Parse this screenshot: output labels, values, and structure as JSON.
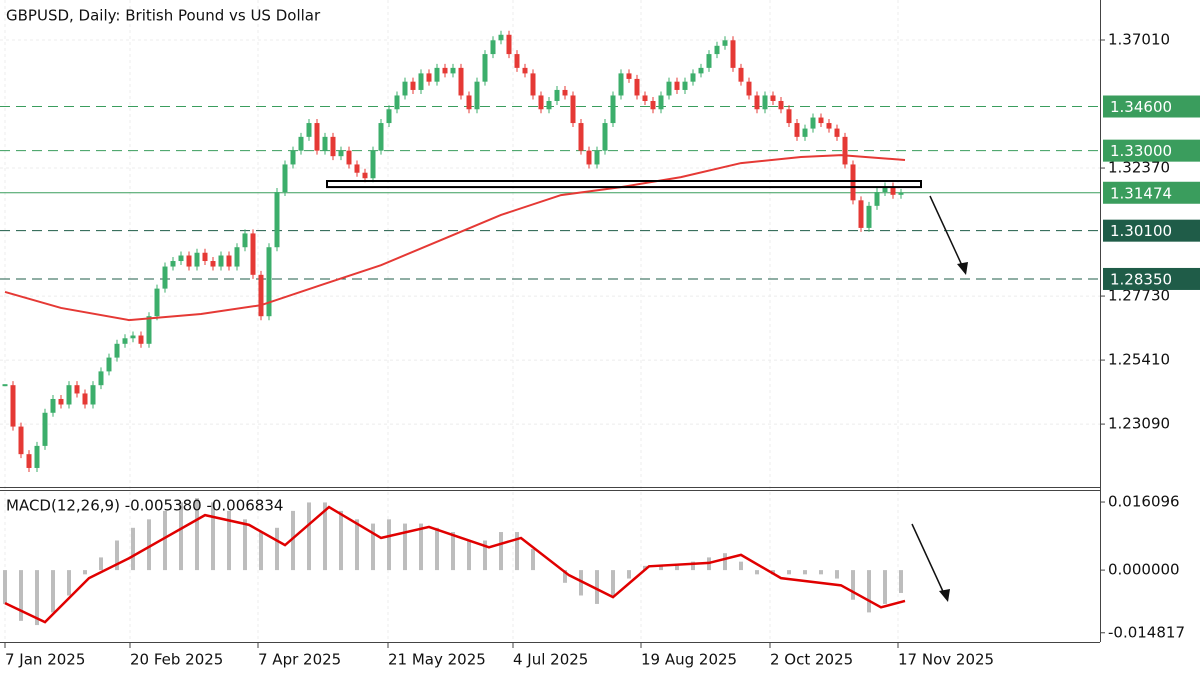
{
  "chart_data": [
    {
      "type": "candlestick",
      "title": "GBPUSD, Daily:  British Pound vs US Dollar",
      "xlim": [
        -1.25,
        273.75
      ],
      "xticks": [
        {
          "value": 0,
          "label": "7 Jan 2025"
        },
        {
          "value": 31.25,
          "label": "20 Feb 2025"
        },
        {
          "value": 63.25,
          "label": "7 Apr 2025"
        },
        {
          "value": 95.75,
          "label": "21 May 2025"
        },
        {
          "value": 127,
          "label": "4 Jul 2025"
        },
        {
          "value": 159,
          "label": "19 Aug 2025"
        },
        {
          "value": 191.25,
          "label": "2 Oct 2025"
        },
        {
          "value": 223.25,
          "label": "17 Nov 2025"
        }
      ],
      "ylim": [
        1.2081,
        1.3846
      ],
      "yticks": [
        {
          "value": 1.3701,
          "label": "1.37010"
        },
        {
          "value": 1.3237,
          "label": "1.32370"
        },
        {
          "value": 1.2773,
          "label": "1.27730"
        },
        {
          "value": 1.2541,
          "label": "1.25410"
        },
        {
          "value": 1.2309,
          "label": "1.23090"
        }
      ],
      "up_color": "#3cae6b",
      "down_color": "#e53935",
      "x": [
        0,
        2,
        4,
        6,
        8,
        10,
        12,
        14,
        16,
        18,
        20,
        22,
        24,
        26,
        28,
        30,
        32,
        34,
        36,
        38,
        40,
        42,
        44,
        46,
        48,
        50,
        52,
        54,
        56,
        58,
        60,
        62,
        64,
        66,
        68,
        70,
        72,
        74,
        76,
        78,
        80,
        82,
        84,
        86,
        88,
        90,
        92,
        94,
        96,
        98,
        100,
        102,
        104,
        106,
        108,
        110,
        112,
        114,
        116,
        118,
        120,
        122,
        124,
        126,
        128,
        130,
        132,
        134,
        136,
        138,
        140,
        142,
        144,
        146,
        148,
        150,
        152,
        154,
        156,
        158,
        160,
        162,
        164,
        166,
        168,
        170,
        172,
        174,
        176,
        178,
        180,
        182,
        184,
        186,
        188,
        190,
        192,
        194,
        196,
        198,
        200,
        202,
        204,
        206,
        208,
        210,
        212,
        214,
        216,
        218,
        220,
        222,
        224
      ],
      "values": [
        1.245,
        1.23,
        1.22,
        1.215,
        1.223,
        1.235,
        1.24,
        1.238,
        1.245,
        1.242,
        1.238,
        1.245,
        1.25,
        1.255,
        1.26,
        1.262,
        1.263,
        1.26,
        1.27,
        1.28,
        1.288,
        1.29,
        1.292,
        1.288,
        1.293,
        1.29,
        1.288,
        1.292,
        1.288,
        1.295,
        1.3,
        1.285,
        1.27,
        1.295,
        1.315,
        1.325,
        1.33,
        1.335,
        1.34,
        1.33,
        1.335,
        1.328,
        1.33,
        1.325,
        1.322,
        1.32,
        1.33,
        1.34,
        1.345,
        1.35,
        1.355,
        1.352,
        1.358,
        1.355,
        1.36,
        1.358,
        1.36,
        1.35,
        1.345,
        1.355,
        1.365,
        1.37,
        1.372,
        1.365,
        1.36,
        1.358,
        1.35,
        1.345,
        1.348,
        1.352,
        1.35,
        1.34,
        1.33,
        1.325,
        1.33,
        1.34,
        1.35,
        1.358,
        1.356,
        1.35,
        1.348,
        1.345,
        1.35,
        1.355,
        1.352,
        1.355,
        1.358,
        1.36,
        1.365,
        1.368,
        1.37,
        1.36,
        1.355,
        1.35,
        1.345,
        1.35,
        1.348,
        1.345,
        1.34,
        1.335,
        1.338,
        1.342,
        1.34,
        1.338,
        1.335,
        1.325,
        1.312,
        1.302,
        1.31,
        1.315,
        1.317,
        1.314,
        1.3147
      ],
      "ma": {
        "color": "#e53935",
        "x": [
          0,
          14,
          31,
          49,
          64,
          79,
          94,
          109,
          124,
          139,
          154,
          169,
          184,
          199,
          209,
          225
        ],
        "values": [
          1.2788,
          1.273,
          1.2686,
          1.2708,
          1.274,
          1.2813,
          1.2885,
          1.2976,
          1.3067,
          1.3139,
          1.3168,
          1.3204,
          1.3255,
          1.3277,
          1.3284,
          1.3266
        ]
      },
      "zone": {
        "x": [
          80.5,
          229
        ],
        "y": [
          1.3168,
          1.319
        ]
      },
      "levels": [
        {
          "value": 1.346,
          "label": "1.34600",
          "color": "#3a9d5d"
        },
        {
          "value": 1.33,
          "label": "1.33000",
          "color": "#3a9d5d"
        },
        {
          "value": 1.301,
          "label": "1.30100",
          "color": "#1f5c48"
        },
        {
          "value": 1.2835,
          "label": "1.28350",
          "color": "#1f5c48"
        }
      ],
      "current": {
        "value": 1.31474,
        "label": "1.31474",
        "color": "#3a9d5d"
      }
    },
    {
      "type": "macd",
      "title": "MACD(12,26,9) -0.005380 -0.006834",
      "ylim": [
        -0.017,
        0.01894
      ],
      "yticks": [
        {
          "value": 0.016096,
          "label": "0.016096"
        },
        {
          "value": 0,
          "label": "0.000000"
        },
        {
          "value": -0.014817,
          "label": "-0.014817"
        }
      ],
      "histogram": {
        "color": "#bdbdbd",
        "x": [
          0,
          4,
          8,
          12,
          16,
          20,
          24,
          28,
          32,
          36,
          40,
          44,
          48,
          52,
          56,
          60,
          64,
          68,
          72,
          76,
          80,
          84,
          88,
          92,
          96,
          100,
          104,
          108,
          112,
          116,
          120,
          124,
          128,
          132,
          136,
          140,
          144,
          148,
          152,
          156,
          160,
          164,
          168,
          172,
          176,
          180,
          184,
          188,
          192,
          196,
          200,
          204,
          208,
          212,
          216,
          220,
          224
        ],
        "values": [
          -0.008,
          -0.012,
          -0.013,
          -0.01,
          -0.006,
          -0.001,
          0.003,
          0.007,
          0.01,
          0.012,
          0.014,
          0.016,
          0.017,
          0.016,
          0.014,
          0.012,
          0.009,
          0.01,
          0.014,
          0.016,
          0.016,
          0.014,
          0.012,
          0.011,
          0.012,
          0.011,
          0.011,
          0.01,
          0.009,
          0.007,
          0.007,
          0.009,
          0.009,
          0.005,
          0,
          -0.003,
          -0.006,
          -0.008,
          -0.006,
          -0.002,
          0.001,
          0.001,
          0.001,
          0.002,
          0.003,
          0.004,
          0.002,
          -0.001,
          -0.001,
          -0.001,
          -0.001,
          -0.001,
          -0.002,
          -0.007,
          -0.01,
          -0.008,
          -0.0054
        ]
      },
      "signal": {
        "color": "#e00000",
        "x": [
          0,
          10,
          21,
          31,
          39,
          50,
          61,
          70,
          81,
          94,
          106,
          121,
          129,
          141,
          152,
          161,
          176,
          184,
          194,
          209,
          219,
          225
        ],
        "values": [
          -0.0078,
          -0.0123,
          -0.0019,
          0.0028,
          0.0071,
          0.013,
          0.0107,
          0.0059,
          0.0149,
          0.0076,
          0.0102,
          0.0054,
          0.0076,
          -0.0012,
          -0.0064,
          0.0009,
          0.0017,
          0.0036,
          -0.0019,
          -0.0036,
          -0.0088,
          -0.0073
        ]
      }
    }
  ]
}
